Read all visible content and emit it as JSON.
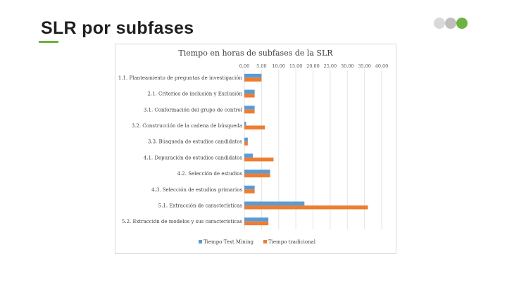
{
  "slide": {
    "title": "SLR por subfases",
    "accent_color": "#6db33f",
    "nav_dots": [
      {
        "name": "nav-dot-previous",
        "color": "#d9d9d9"
      },
      {
        "name": "nav-dot-current",
        "color": "#bfbfbf"
      },
      {
        "name": "nav-dot-next",
        "color": "#6db33f"
      }
    ]
  },
  "chart_data": {
    "type": "bar",
    "orientation": "horizontal",
    "title": "Tiempo en horas de subfases de la SLR",
    "categories": [
      "1.1. Planteamiento de preguntas de investigación",
      "2.1. Criterios de inclusión y Exclusión",
      "3.1. Conformación del grupo de control",
      "3.2. Construcción de la cadena de búsqueda",
      "3.3. Búsqueda de estudios candidatos",
      "4.1. Depuración de estudios candidatos",
      "4.2. Selección de estudios",
      "4.3. Selección de estudios primarios",
      "5.1. Extracción de características",
      "5.2. Extracción de modelos y sus características"
    ],
    "series": [
      {
        "name": "Tiempo Text Mining",
        "color": "#5b9bd5",
        "values": [
          5,
          3,
          3,
          0.5,
          1,
          2.5,
          7.5,
          3,
          17.5,
          7
        ]
      },
      {
        "name": "Tiempo tradicional",
        "color": "#ed7d31",
        "values": [
          5,
          3,
          3,
          6,
          1,
          8.5,
          7.5,
          3,
          36,
          7
        ]
      }
    ],
    "xlim": [
      0,
      40
    ],
    "xticks": [
      "0,00",
      "5,00",
      "10,00",
      "15,00",
      "20,00",
      "25,00",
      "30,00",
      "35,00",
      "40,00"
    ],
    "grid": true,
    "legend_position": "bottom"
  }
}
